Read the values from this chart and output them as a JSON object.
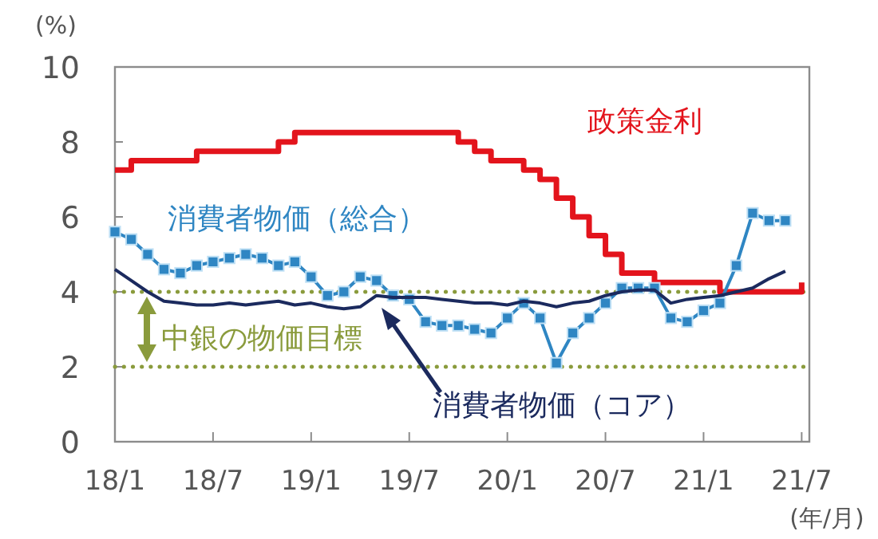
{
  "chart_data": {
    "type": "line",
    "ylabel": "(%)",
    "xlabel": "(年/月)",
    "categories": [
      "18/1",
      null,
      null,
      null,
      null,
      null,
      "18/7",
      null,
      null,
      null,
      null,
      null,
      "19/1",
      null,
      null,
      null,
      null,
      null,
      "19/7",
      null,
      null,
      null,
      null,
      null,
      "20/1",
      null,
      null,
      null,
      null,
      null,
      "20/7",
      null,
      null,
      null,
      null,
      null,
      "21/1",
      null,
      null,
      null,
      null,
      null,
      "21/7"
    ],
    "ylim": [
      0,
      10
    ],
    "yticks": [
      0,
      2,
      4,
      6,
      8,
      10
    ],
    "series": [
      {
        "name": "政策金利",
        "type": "step",
        "color": "#e3141c",
        "values": [
          7.25,
          7.5,
          7.5,
          7.5,
          7.5,
          7.75,
          7.75,
          7.75,
          7.75,
          7.75,
          8.0,
          8.25,
          8.25,
          8.25,
          8.25,
          8.25,
          8.25,
          8.25,
          8.25,
          8.25,
          8.25,
          8.0,
          7.75,
          7.5,
          7.5,
          7.25,
          7.0,
          6.5,
          6.0,
          5.5,
          5.0,
          4.5,
          4.5,
          4.25,
          4.25,
          4.25,
          4.25,
          4.0,
          4.0,
          4.0,
          4.0,
          4.0,
          4.25
        ]
      },
      {
        "name": "消費者物価（総合）",
        "color": "#2f86c3",
        "marker": "square",
        "values": [
          5.6,
          5.4,
          5.0,
          4.6,
          4.5,
          4.7,
          4.8,
          4.9,
          5.0,
          4.9,
          4.7,
          4.8,
          4.4,
          3.9,
          4.0,
          4.4,
          4.3,
          3.9,
          3.8,
          3.2,
          3.1,
          3.1,
          3.0,
          2.9,
          3.3,
          3.7,
          3.3,
          2.1,
          2.9,
          3.3,
          3.7,
          4.1,
          4.1,
          4.1,
          3.3,
          3.2,
          3.5,
          3.7,
          4.7,
          6.1,
          5.9,
          5.9,
          null
        ]
      },
      {
        "name": "消費者物価（コア）",
        "color": "#1b2a5e",
        "values": [
          4.6,
          4.3,
          4.0,
          3.75,
          3.7,
          3.65,
          3.65,
          3.7,
          3.65,
          3.7,
          3.75,
          3.65,
          3.7,
          3.6,
          3.55,
          3.6,
          3.9,
          3.85,
          3.85,
          3.85,
          3.8,
          3.75,
          3.7,
          3.7,
          3.65,
          3.75,
          3.7,
          3.6,
          3.7,
          3.75,
          3.9,
          4.0,
          4.05,
          4.05,
          3.7,
          3.8,
          3.85,
          3.9,
          4.0,
          4.1,
          4.35,
          4.55,
          null
        ]
      }
    ],
    "ref_lines": [
      {
        "axis": "y",
        "value": 4,
        "color": "#8a9b3c",
        "line_style": "dotted"
      },
      {
        "axis": "y",
        "value": 2,
        "color": "#8a9b3c",
        "line_style": "dotted"
      }
    ],
    "annotations": [
      "中銀の物価目標"
    ],
    "grid": false
  }
}
